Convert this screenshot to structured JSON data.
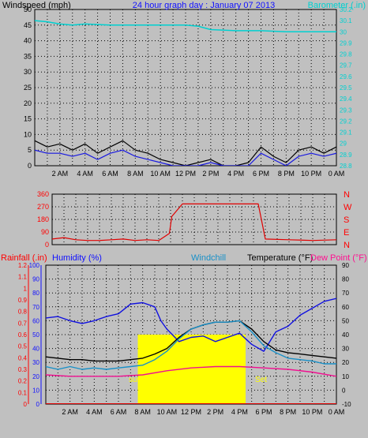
{
  "title": "24 hour graph day : January 07 2013",
  "chart_data": [
    {
      "type": "line",
      "panel": "wind-barometer",
      "title": "24 hour graph day : January 07 2013",
      "left_axis_label": "Windspeed (mph)",
      "right_axis_label": "Barometer (.in)",
      "x_tick_labels": [
        "2 AM",
        "4 AM",
        "6 AM",
        "8 AM",
        "10 AM",
        "12 PM",
        "2 PM",
        "4 PM",
        "6 PM",
        "8 PM",
        "10 PM",
        "0 AM"
      ],
      "left_ticks": [
        0,
        5,
        10,
        15,
        20,
        25,
        30,
        35,
        40,
        45,
        50
      ],
      "right_ticks": [
        "28.8",
        "28.9",
        "29",
        "29.1",
        "29.2",
        "29.3",
        "29.4",
        "29.5",
        "29.6",
        "29.7",
        "29.8",
        "29.9",
        "30",
        "30.1",
        "30.2"
      ],
      "ylim_left": [
        0,
        50
      ],
      "ylim_right": [
        28.8,
        30.2
      ],
      "grid": true,
      "series": [
        {
          "name": "Barometer (.in)",
          "color": "#00d0d0",
          "axis": "right",
          "hours": [
            0,
            1,
            2,
            3,
            4,
            6,
            8,
            10,
            12,
            13,
            14,
            16,
            18,
            20,
            22,
            24
          ],
          "values": [
            30.1,
            30.09,
            30.07,
            30.06,
            30.07,
            30.06,
            30.06,
            30.06,
            30.06,
            30.05,
            30.02,
            30.01,
            30.01,
            30.0,
            30.0,
            30.0
          ]
        },
        {
          "name": "wind gust",
          "color": "#000000",
          "axis": "left",
          "hours": [
            0,
            1,
            2,
            3,
            4,
            5,
            6,
            7,
            8,
            9,
            10,
            11,
            12,
            13,
            14,
            15,
            16,
            17,
            18,
            19,
            20,
            21,
            22,
            23,
            24
          ],
          "values": [
            8,
            6,
            7,
            5,
            7,
            4,
            6,
            8,
            5,
            4,
            2,
            1,
            0,
            1,
            2,
            0,
            0,
            1,
            6,
            3,
            1,
            5,
            6,
            4,
            6
          ]
        },
        {
          "name": "wind average",
          "color": "#1818e0",
          "axis": "left",
          "hours": [
            0,
            1,
            2,
            3,
            4,
            5,
            6,
            7,
            8,
            9,
            10,
            11,
            12,
            13,
            14,
            15,
            16,
            17,
            18,
            19,
            20,
            21,
            22,
            23,
            24
          ],
          "values": [
            5,
            4,
            4,
            3,
            4,
            2,
            4,
            5,
            3,
            2,
            1,
            0,
            0,
            0,
            1,
            0,
            0,
            0,
            4,
            2,
            0,
            3,
            4,
            3,
            4
          ]
        }
      ]
    },
    {
      "type": "line",
      "panel": "wind-direction",
      "left_ticks": [
        0,
        90,
        180,
        270,
        360
      ],
      "right_tick_labels": [
        "N",
        "W",
        "S",
        "E",
        "N"
      ],
      "ylim": [
        0,
        360
      ],
      "grid": true,
      "series": [
        {
          "name": "wind direction",
          "color": "#e00000",
          "hours": [
            0,
            1,
            2,
            3,
            4,
            5,
            6,
            7,
            8,
            9,
            9.9,
            10.1,
            10.5,
            11,
            12,
            14,
            16,
            17,
            17.4,
            18,
            20,
            22,
            24
          ],
          "values": [
            40,
            50,
            35,
            30,
            30,
            35,
            40,
            30,
            35,
            30,
            80,
            200,
            240,
            290,
            290,
            290,
            290,
            290,
            290,
            40,
            35,
            30,
            35
          ]
        }
      ]
    },
    {
      "type": "line",
      "panel": "temperature-humidity",
      "left_axis_labels": [
        "Rainfall (.in)",
        "Humidity (%)"
      ],
      "right_axis_labels": [
        "Windchill",
        "Temperature (°F)",
        "Dew Point (°F)"
      ],
      "rain_ticks": [
        "0",
        "0.1",
        "0.2",
        "0.3",
        "0.4",
        "0.5",
        "0.6",
        "0.7",
        "0.8",
        "0.9",
        "1",
        "1.1",
        "1.2"
      ],
      "humidity_ticks": [
        0,
        10,
        20,
        30,
        40,
        50,
        60,
        70,
        80,
        90,
        100
      ],
      "temp_ticks": [
        -10,
        0,
        10,
        20,
        30,
        40,
        50,
        60,
        70,
        80,
        90
      ],
      "ylim_rain": [
        0,
        1.2
      ],
      "ylim_humidity": [
        0,
        100
      ],
      "ylim_temp": [
        -10,
        90
      ],
      "grid": true,
      "annotations": [
        "sun rise",
        "Set"
      ],
      "sunshine_hours": [
        7.6,
        16.5
      ],
      "series": [
        {
          "name": "Humidity (%)",
          "color": "#1010e0",
          "axis": "humidity",
          "hours": [
            0,
            1,
            2,
            3,
            4,
            5,
            6,
            7,
            8,
            9,
            9.5,
            10,
            11,
            12,
            13,
            14,
            15,
            16,
            17,
            18,
            19,
            20,
            21,
            22,
            23,
            24
          ],
          "values": [
            62,
            63,
            60,
            58,
            60,
            63,
            65,
            72,
            73,
            70,
            60,
            54,
            45,
            48,
            49,
            45,
            48,
            51,
            43,
            38,
            52,
            56,
            64,
            69,
            74,
            76
          ]
        },
        {
          "name": "Temperature (°F)",
          "color": "#000000",
          "axis": "temp",
          "hours": [
            0,
            1,
            2,
            3,
            4,
            5,
            6,
            7,
            8,
            9,
            10,
            11,
            12,
            13,
            14,
            15,
            16,
            17,
            18,
            19,
            20,
            21,
            22,
            23,
            24
          ],
          "values": [
            24,
            23,
            22,
            22,
            21,
            21,
            21,
            22,
            23,
            26,
            30,
            38,
            44,
            47,
            49,
            49,
            50,
            44,
            35,
            29,
            27,
            26,
            25,
            24,
            23
          ]
        },
        {
          "name": "Windchill",
          "color": "#1890c8",
          "axis": "temp",
          "hours": [
            0,
            1,
            2,
            3,
            4,
            5,
            6,
            7,
            8,
            9,
            10,
            11,
            12,
            13,
            14,
            15,
            16,
            17,
            18,
            19,
            20,
            21,
            22,
            23,
            24
          ],
          "values": [
            17,
            15,
            17,
            15,
            16,
            15,
            16,
            17,
            18,
            22,
            28,
            37,
            44,
            47,
            49,
            49,
            50,
            42,
            32,
            27,
            23,
            22,
            21,
            19,
            19
          ]
        },
        {
          "name": "Dew Point (°F)",
          "color": "#f01090",
          "axis": "temp",
          "hours": [
            0,
            2,
            4,
            6,
            8,
            10,
            12,
            14,
            16,
            18,
            20,
            22,
            24
          ],
          "values": [
            11,
            10,
            10,
            10,
            11,
            14,
            16,
            17,
            17,
            16,
            15,
            13,
            10
          ]
        },
        {
          "name": "Rainfall (.in)",
          "color": "#e00000",
          "axis": "rain",
          "hours": [
            0,
            24
          ],
          "values": [
            0,
            0
          ]
        }
      ]
    }
  ]
}
